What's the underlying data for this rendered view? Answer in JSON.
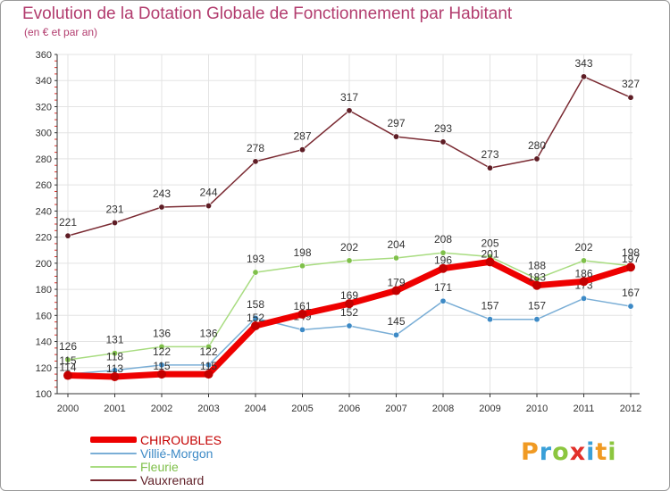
{
  "title": "Evolution de la Dotation Globale de Fonctionnement par Habitant",
  "subtitle": "(en € et par an)",
  "logo": {
    "letters": [
      "P",
      "r",
      "o",
      "x",
      "i",
      "t",
      "i"
    ],
    "colors": [
      "#f09a23",
      "#3aa0d8",
      "#8cc63f",
      "#e2302a",
      "#3aa0d8",
      "#f09a23",
      "#8cc63f"
    ]
  },
  "colors": {
    "axis": "#333333",
    "grid": "#e3e3e3",
    "tick_label": "#333333",
    "title": "#b23c6e"
  },
  "chart_data": {
    "type": "line",
    "title": "Evolution de la Dotation Globale de Fonctionnement par Habitant",
    "subtitle": "(en € et par an)",
    "xlabel": "",
    "ylabel": "",
    "x": [
      "2000",
      "2001",
      "2002",
      "2003",
      "2004",
      "2005",
      "2006",
      "2007",
      "2008",
      "2009",
      "2010",
      "2011",
      "2012"
    ],
    "ylim": [
      100,
      360
    ],
    "yticks": [
      100,
      120,
      140,
      160,
      180,
      200,
      220,
      240,
      260,
      280,
      300,
      320,
      340,
      360
    ],
    "grid": true,
    "legend_position": "bottom-left",
    "series": [
      {
        "name": "Vauxrenard",
        "color": "#7a2a32",
        "marker": "#5e1d25",
        "values": [
          221,
          231,
          243,
          244,
          278,
          287,
          317,
          297,
          293,
          273,
          280,
          343,
          327
        ]
      },
      {
        "name": "Fleurie",
        "color": "#a8dc80",
        "marker": "#7fc04a",
        "values": [
          126,
          131,
          136,
          136,
          193,
          198,
          202,
          204,
          208,
          205,
          188,
          202,
          198
        ]
      },
      {
        "name": "Villié-Morgon",
        "color": "#7aaed6",
        "marker": "#3d8ac6",
        "values": [
          115,
          118,
          122,
          122,
          158,
          149,
          152,
          145,
          171,
          157,
          157,
          173,
          167
        ]
      },
      {
        "name": "CHIROUBLES",
        "color": "#ee0000",
        "marker": "#c40000",
        "values": [
          114,
          113,
          115,
          115,
          152,
          161,
          169,
          179,
          196,
          201,
          183,
          186,
          197
        ]
      }
    ],
    "legend_order": [
      "CHIROUBLES",
      "Villié-Morgon",
      "Fleurie",
      "Vauxrenard"
    ]
  }
}
